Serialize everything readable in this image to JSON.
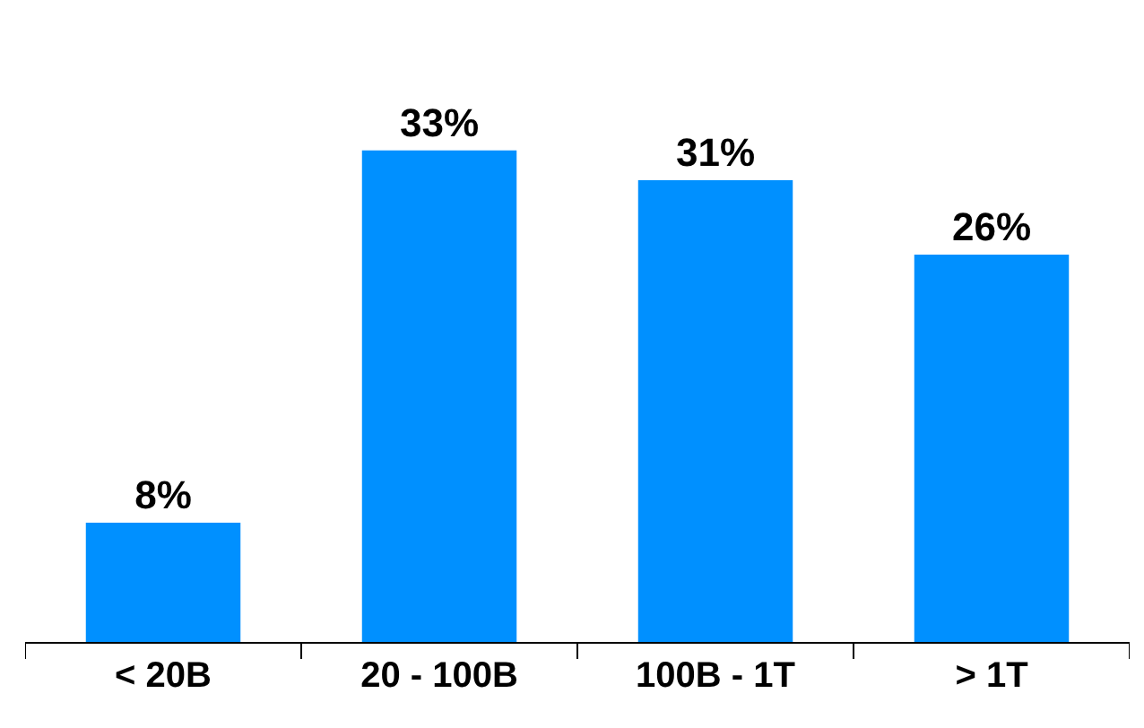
{
  "chart_data": {
    "type": "bar",
    "categories": [
      "< 20B",
      "20 - 100B",
      "100B - 1T",
      "> 1T"
    ],
    "values": [
      8,
      33,
      31,
      26
    ],
    "value_labels": [
      "8%",
      "33%",
      "31%",
      "26%"
    ],
    "color": "#0090ff"
  }
}
